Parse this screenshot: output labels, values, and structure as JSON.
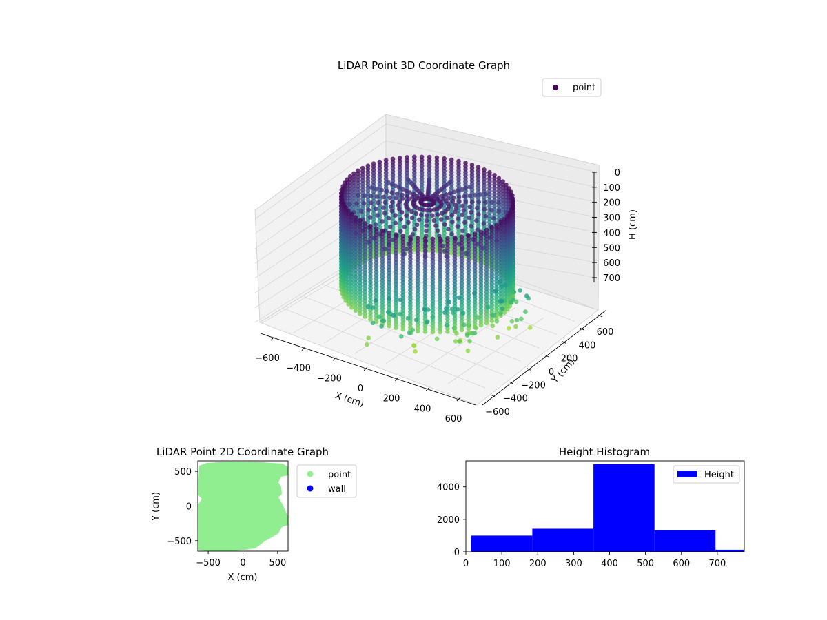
{
  "figure": {
    "background": "#ffffff"
  },
  "chart_data": [
    {
      "type": "scatter",
      "projection": "3d",
      "title": "LiDAR Point 3D Coordinate Graph",
      "xlabel": "X (cm)",
      "ylabel": "Y (cm)",
      "zlabel": "H (cm)",
      "xlim": [
        -700,
        700
      ],
      "ylim": [
        -700,
        700
      ],
      "zlim": [
        750,
        0
      ],
      "xticks": [
        "−600",
        "−400",
        "−200",
        "0",
        "200",
        "400",
        "600"
      ],
      "yticks": [
        "−600",
        "−400",
        "−200",
        "0",
        "200",
        "400",
        "600"
      ],
      "zticks": [
        "0",
        "100",
        "200",
        "300",
        "400",
        "500",
        "600",
        "700"
      ],
      "grid": true,
      "colormap": "viridis",
      "legend": {
        "placement": "upper-right",
        "entries": [
          "point"
        ]
      },
      "series": [
        {
          "name": "point",
          "color": "#440154",
          "description_of_shape": "circular wall of vertical point columns, radius approx 520 cm, heights approx 20 to 700 cm, with inner ceiling points and sparse exterior points",
          "wall_radius": 520,
          "height_range": [
            20,
            700
          ]
        }
      ]
    },
    {
      "type": "scatter",
      "title": "LiDAR Point 2D Coordinate Graph",
      "xlabel": "X (cm)",
      "ylabel": "Y (cm)",
      "xlim": [
        -650,
        650
      ],
      "ylim": [
        -650,
        650
      ],
      "xticks": [
        "−500",
        "0",
        "500"
      ],
      "yticks": [
        "−500",
        "0",
        "500"
      ],
      "legend": {
        "placement": "outside-right",
        "entries": [
          "point",
          "wall"
        ]
      },
      "series": [
        {
          "name": "point",
          "color": "#90ee90"
        },
        {
          "name": "wall",
          "color": "#0000ff"
        }
      ]
    },
    {
      "type": "bar",
      "subtype": "histogram",
      "title": "Height Histogram",
      "xlim": [
        0,
        775
      ],
      "ylim": [
        0,
        5600
      ],
      "xticks": [
        "0",
        "100",
        "200",
        "300",
        "400",
        "500",
        "600",
        "700"
      ],
      "yticks": [
        "0",
        "2000",
        "4000"
      ],
      "legend": {
        "placement": "upper-right",
        "entries": [
          "Height"
        ]
      },
      "series": [
        {
          "name": "Height",
          "color": "#0000ff",
          "bins": [
            {
              "from": 15,
              "to": 185,
              "count": 1000
            },
            {
              "from": 185,
              "to": 355,
              "count": 1420
            },
            {
              "from": 355,
              "to": 525,
              "count": 5400
            },
            {
              "from": 525,
              "to": 695,
              "count": 1330
            },
            {
              "from": 695,
              "to": 775,
              "count": 130
            }
          ]
        }
      ]
    }
  ]
}
